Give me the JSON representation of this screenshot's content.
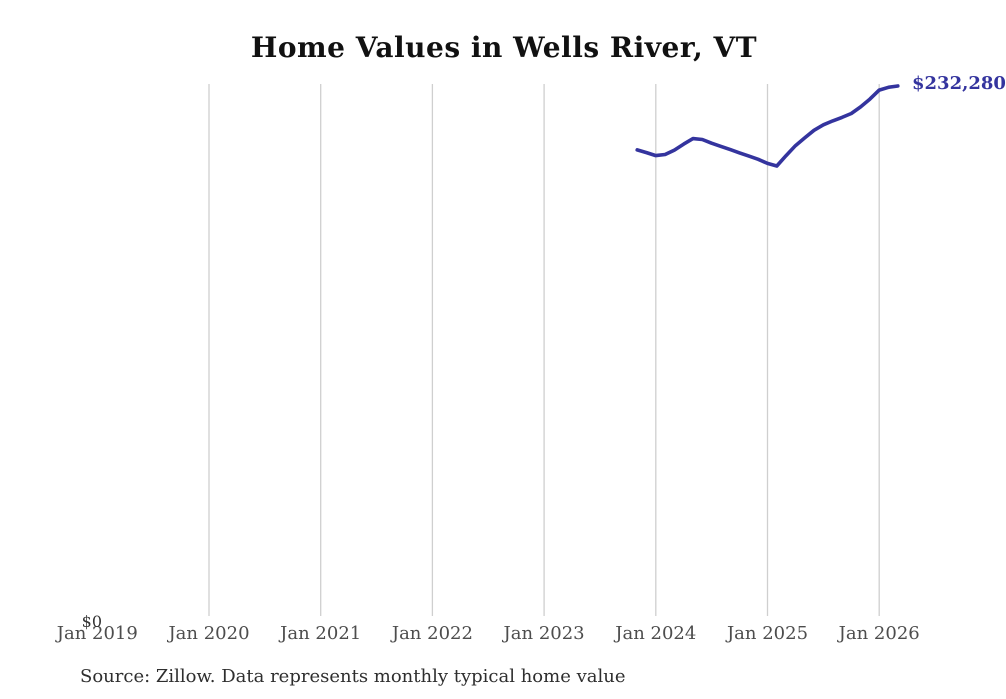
{
  "chart_data": {
    "type": "line",
    "title": "Home Values in Wells River, VT",
    "x_ticks": [
      "Jan 2019",
      "Jan 2020",
      "Jan 2021",
      "Jan 2022",
      "Jan 2023",
      "Jan 2024",
      "Jan 2025",
      "Jan 2026"
    ],
    "y_axis": {
      "min_label": "$0",
      "min": 0,
      "max_value_shown": 232280
    },
    "end_label": "$232,280",
    "source_note": "Source: Zillow. Data represents monthly typical home value",
    "colors": {
      "line": "#34349e",
      "gridline": "#cfcfcf",
      "end_label": "#34349e",
      "axis_text": "#4d4d4d"
    },
    "legend": "none",
    "grid": "vertical-only",
    "series": [
      {
        "name": "Monthly typical home value",
        "months": [
          "2023-11",
          "2023-12",
          "2024-01",
          "2024-02",
          "2024-03",
          "2024-04",
          "2024-05",
          "2024-06",
          "2024-07",
          "2024-08",
          "2024-09",
          "2024-10",
          "2024-11",
          "2024-12",
          "2025-01",
          "2025-02",
          "2025-03",
          "2025-04",
          "2025-05",
          "2025-06",
          "2025-07",
          "2025-08",
          "2025-09",
          "2025-10",
          "2025-11",
          "2025-12",
          "2026-01",
          "2026-02",
          "2026-03"
        ],
        "values": [
          204500,
          203300,
          202000,
          202500,
          204400,
          207000,
          209400,
          209000,
          207400,
          206000,
          204600,
          203200,
          201800,
          200400,
          198600,
          197500,
          202000,
          206300,
          209700,
          213000,
          215400,
          217100,
          218600,
          220300,
          223200,
          226600,
          230500,
          231700,
          232280
        ]
      }
    ]
  }
}
